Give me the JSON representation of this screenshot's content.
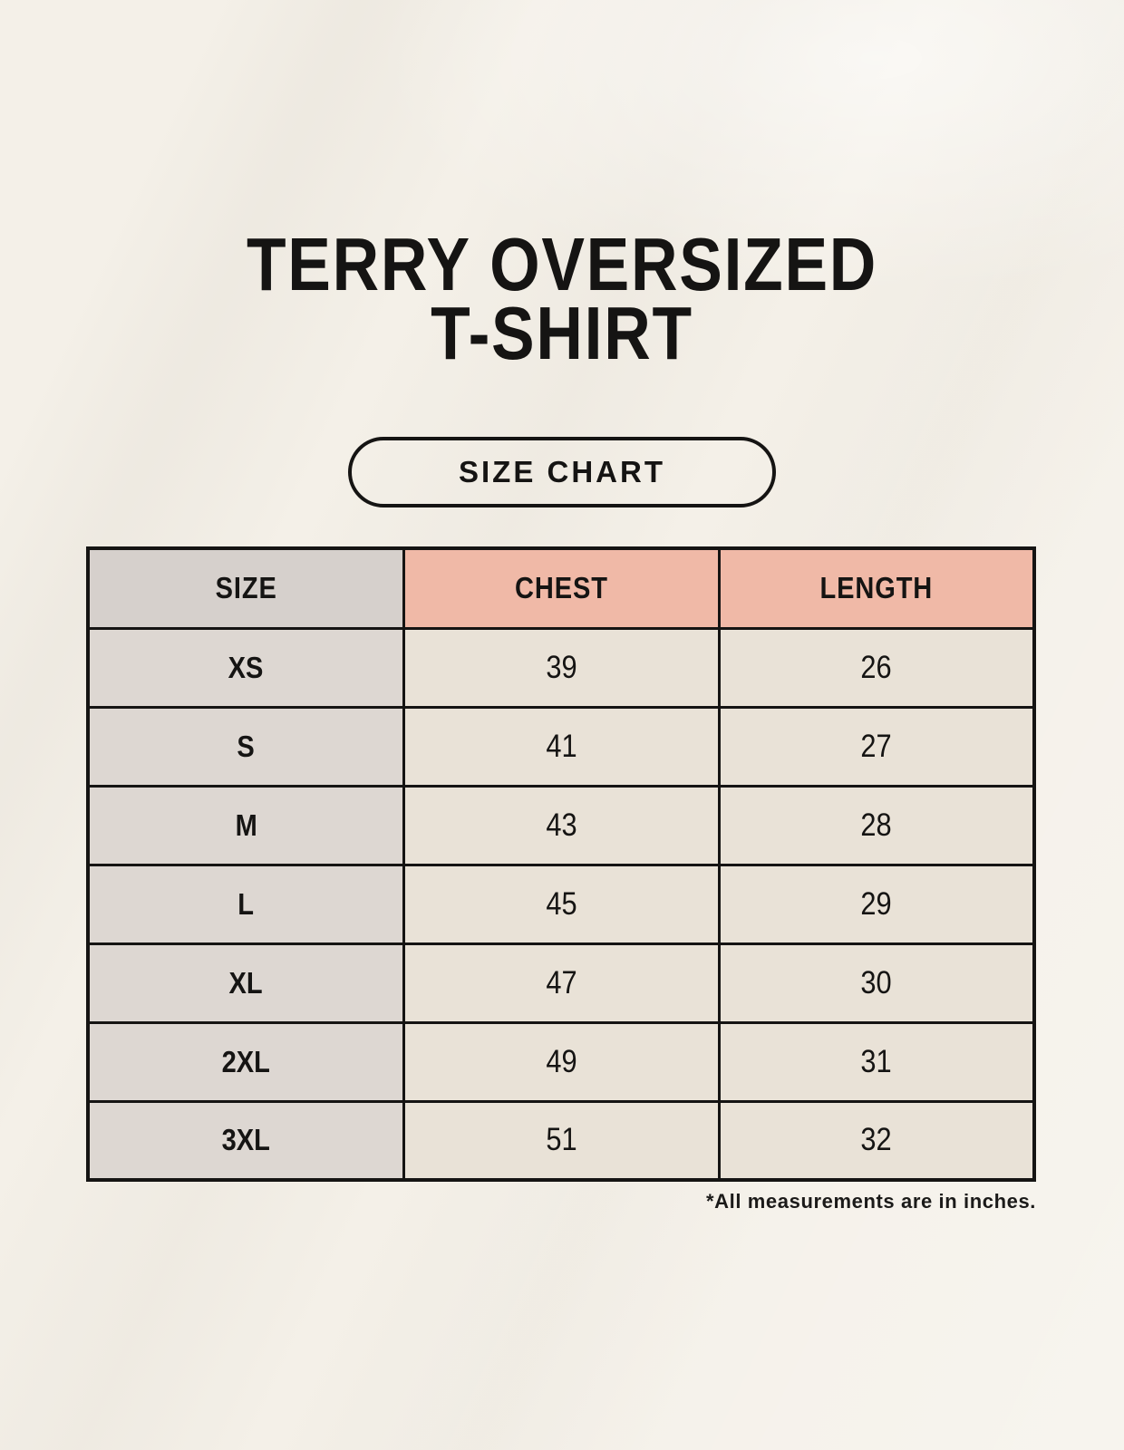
{
  "page": {
    "title_line1": "TERRY OVERSIZED",
    "title_line2": "T-SHIRT",
    "badge_label": "SIZE CHART",
    "footnote": "*All measurements are in inches."
  },
  "chart_data": {
    "type": "table",
    "title": "TERRY OVERSIZED T-SHIRT",
    "subtitle": "SIZE CHART",
    "units": "inches",
    "columns": [
      "SIZE",
      "CHEST",
      "LENGTH"
    ],
    "rows": [
      [
        "XS",
        39,
        26
      ],
      [
        "S",
        41,
        27
      ],
      [
        "M",
        43,
        28
      ],
      [
        "L",
        45,
        29
      ],
      [
        "XL",
        47,
        30
      ],
      [
        "2XL",
        49,
        31
      ],
      [
        "3XL",
        51,
        32
      ]
    ],
    "note": "*All measurements are in inches."
  },
  "colors": {
    "background": "#f4f0e8",
    "header_size_bg": "#d6d0cc",
    "header_measure_bg": "#f0b9a7",
    "row_size_bg": "#ddd7d2",
    "row_data_bg": "#e9e2d7",
    "border": "#151413",
    "text": "#151413"
  }
}
